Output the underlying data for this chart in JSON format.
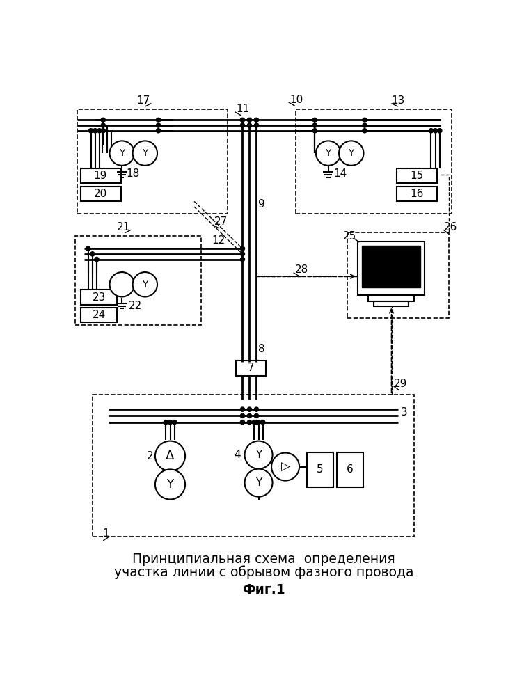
{
  "title_line1": "Принципиальная схема  определения",
  "title_line2": "участка линии с обрывом фазного провода",
  "fig_label": "Фиг.1",
  "bg_color": "#ffffff"
}
